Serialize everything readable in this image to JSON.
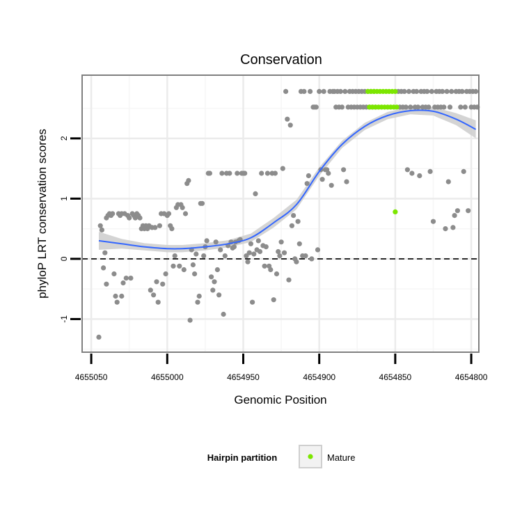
{
  "chart_data": {
    "type": "scatter",
    "title": "Conservation",
    "xlabel": "Genomic Position",
    "ylabel": "phyloP LRT conservation scores",
    "x_reversed": true,
    "xlim": [
      4655056,
      4654795
    ],
    "ylim": [
      -1.55,
      3.05
    ],
    "x_ticks": [
      4655050,
      4655000,
      4654950,
      4654900,
      4654850,
      4654800
    ],
    "x_tick_labels": [
      "4655050",
      "4655000",
      "4654950",
      "4654900",
      "4654850",
      "4654800"
    ],
    "y_ticks": [
      -1,
      0,
      1,
      2
    ],
    "y_tick_labels": [
      "-1",
      "0",
      "1",
      "2"
    ],
    "reference_line": {
      "y": 0,
      "style": "dashed"
    },
    "grid": true,
    "legend": {
      "title": "Hairpin partition",
      "position": "bottom",
      "entries": [
        {
          "label": "Mature",
          "color": "#7CE600"
        }
      ]
    },
    "colors": {
      "other": "#8C8C8C",
      "mature": "#7CE600",
      "smooth": "#3366FF",
      "band": "#CFCFCF",
      "panel_border": "#7F7F7F"
    },
    "series": [
      {
        "name": "",
        "color": "#8C8C8C",
        "points": [
          [
            4655045,
            -1.3
          ],
          [
            4655044,
            0.55
          ],
          [
            4655043,
            0.48
          ],
          [
            4655042,
            -0.15
          ],
          [
            4655041,
            0.1
          ],
          [
            4655040,
            -0.42
          ],
          [
            4655040,
            0.68
          ],
          [
            4655039,
            0.72
          ],
          [
            4655038,
            0.75
          ],
          [
            4655037,
            0.72
          ],
          [
            4655036,
            0.75
          ],
          [
            4655035,
            -0.25
          ],
          [
            4655034,
            -0.62
          ],
          [
            4655033,
            -0.72
          ],
          [
            4655032,
            0.75
          ],
          [
            4655031,
            0.72
          ],
          [
            4655030,
            -0.62
          ],
          [
            4655030,
            0.75
          ],
          [
            4655029,
            -0.4
          ],
          [
            4655028,
            0.75
          ],
          [
            4655027,
            -0.32
          ],
          [
            4655026,
            0.72
          ],
          [
            4655025,
            0.68
          ],
          [
            4655024,
            -0.32
          ],
          [
            4655023,
            0.75
          ],
          [
            4655022,
            0.72
          ],
          [
            4655021,
            0.68
          ],
          [
            4655020,
            0.75
          ],
          [
            4655019,
            0.72
          ],
          [
            4655018,
            0.68
          ],
          [
            4655017,
            0.5
          ],
          [
            4655016,
            0.55
          ],
          [
            4655015,
            0.5
          ],
          [
            4655014,
            0.55
          ],
          [
            4655013,
            0.5
          ],
          [
            4655012,
            0.55
          ],
          [
            4655011,
            -0.52
          ],
          [
            4655010,
            0.52
          ],
          [
            4655009,
            -0.6
          ],
          [
            4655008,
            0.52
          ],
          [
            4655007,
            -0.38
          ],
          [
            4655006,
            -0.72
          ],
          [
            4655005,
            0.55
          ],
          [
            4655004,
            0.75
          ],
          [
            4655003,
            -0.42
          ],
          [
            4655002,
            0.75
          ],
          [
            4655001,
            -0.25
          ],
          [
            4655000,
            0.72
          ],
          [
            4654999,
            0.75
          ],
          [
            4654998,
            0.55
          ],
          [
            4654997,
            0.5
          ],
          [
            4654996,
            -0.12
          ],
          [
            4654995,
            0.05
          ],
          [
            4654994,
            0.85
          ],
          [
            4654993,
            0.9
          ],
          [
            4654992,
            -0.12
          ],
          [
            4654991,
            0.9
          ],
          [
            4654990,
            0.85
          ],
          [
            4654989,
            -0.18
          ],
          [
            4654988,
            0.75
          ],
          [
            4654987,
            1.25
          ],
          [
            4654986,
            1.3
          ],
          [
            4654985,
            -1.02
          ],
          [
            4654984,
            0.15
          ],
          [
            4654983,
            -0.1
          ],
          [
            4654982,
            -0.25
          ],
          [
            4654981,
            0.08
          ],
          [
            4654980,
            -0.72
          ],
          [
            4654979,
            -0.62
          ],
          [
            4654978,
            0.92
          ],
          [
            4654977,
            0.92
          ],
          [
            4654976,
            0.05
          ],
          [
            4654975,
            0.2
          ],
          [
            4654974,
            0.3
          ],
          [
            4654973,
            1.42
          ],
          [
            4654972,
            1.42
          ],
          [
            4654971,
            -0.3
          ],
          [
            4654970,
            -0.52
          ],
          [
            4654969,
            -0.38
          ],
          [
            4654968,
            0.28
          ],
          [
            4654967,
            -0.18
          ],
          [
            4654966,
            -0.6
          ],
          [
            4654965,
            0.15
          ],
          [
            4654964,
            1.42
          ],
          [
            4654963,
            -0.92
          ],
          [
            4654962,
            0.05
          ],
          [
            4654961,
            1.42
          ],
          [
            4654960,
            0.22
          ],
          [
            4654959,
            1.42
          ],
          [
            4654958,
            0.28
          ],
          [
            4654957,
            0.18
          ],
          [
            4654956,
            0.2
          ],
          [
            4654955,
            0.28
          ],
          [
            4654954,
            1.42
          ],
          [
            4654953,
            0.3
          ],
          [
            4654952,
            0.32
          ],
          [
            4654951,
            1.42
          ],
          [
            4654950,
            1.42
          ],
          [
            4654949,
            1.42
          ],
          [
            4654948,
            0.05
          ],
          [
            4654947,
            -0.05
          ],
          [
            4654946,
            0.1
          ],
          [
            4654945,
            0.25
          ],
          [
            4654944,
            -0.72
          ],
          [
            4654943,
            0.08
          ],
          [
            4654942,
            1.08
          ],
          [
            4654941,
            0.15
          ],
          [
            4654940,
            0.3
          ],
          [
            4654939,
            0.12
          ],
          [
            4654938,
            1.42
          ],
          [
            4654937,
            0.22
          ],
          [
            4654936,
            -0.12
          ],
          [
            4654935,
            0.2
          ],
          [
            4654934,
            1.42
          ],
          [
            4654933,
            -0.12
          ],
          [
            4654932,
            -0.18
          ],
          [
            4654931,
            1.42
          ],
          [
            4654930,
            -0.68
          ],
          [
            4654929,
            1.42
          ],
          [
            4654928,
            -0.25
          ],
          [
            4654927,
            0.12
          ],
          [
            4654926,
            0.05
          ],
          [
            4654925,
            0.28
          ],
          [
            4654924,
            1.5
          ],
          [
            4654923,
            0.1
          ],
          [
            4654922,
            2.78
          ],
          [
            4654921,
            2.32
          ],
          [
            4654920,
            -0.35
          ],
          [
            4654919,
            2.22
          ],
          [
            4654918,
            0.55
          ],
          [
            4654917,
            0.72
          ],
          [
            4654916,
            0.0
          ],
          [
            4654915,
            -0.05
          ],
          [
            4654914,
            0.62
          ],
          [
            4654913,
            0.25
          ],
          [
            4654912,
            2.78
          ],
          [
            4654911,
            0.05
          ],
          [
            4654910,
            2.78
          ],
          [
            4654909,
            0.05
          ],
          [
            4654908,
            1.25
          ],
          [
            4654907,
            1.38
          ],
          [
            4654906,
            2.78
          ],
          [
            4654905,
            0.0
          ],
          [
            4654904,
            2.52
          ],
          [
            4654903,
            2.52
          ],
          [
            4654902,
            2.52
          ],
          [
            4654901,
            0.15
          ],
          [
            4654900,
            2.78
          ],
          [
            4654899,
            1.48
          ],
          [
            4654898,
            1.32
          ],
          [
            4654897,
            2.78
          ],
          [
            4654896,
            1.48
          ],
          [
            4654895,
            1.48
          ],
          [
            4654894,
            1.42
          ],
          [
            4654893,
            2.78
          ],
          [
            4654892,
            1.22
          ],
          [
            4654891,
            2.78
          ],
          [
            4654890,
            2.78
          ],
          [
            4654889,
            2.52
          ],
          [
            4654888,
            2.78
          ],
          [
            4654887,
            2.52
          ],
          [
            4654886,
            2.78
          ],
          [
            4654885,
            2.52
          ],
          [
            4654884,
            1.48
          ],
          [
            4654883,
            2.78
          ],
          [
            4654882,
            1.28
          ],
          [
            4654881,
            2.52
          ],
          [
            4654880,
            2.78
          ],
          [
            4654879,
            2.52
          ],
          [
            4654878,
            2.78
          ],
          [
            4654877,
            2.52
          ],
          [
            4654876,
            2.78
          ],
          [
            4654875,
            2.52
          ],
          [
            4654874,
            2.78
          ],
          [
            4654873,
            2.52
          ],
          [
            4654872,
            2.78
          ],
          [
            4654871,
            2.52
          ],
          [
            4654870,
            2.78
          ],
          [
            4654869,
            2.52
          ],
          [
            4654868,
            2.78
          ],
          [
            4654867,
            2.52
          ],
          [
            4654866,
            2.78
          ],
          [
            4654865,
            2.52
          ],
          [
            4654864,
            2.78
          ],
          [
            4654863,
            2.52
          ],
          [
            4654848,
            2.78
          ],
          [
            4654847,
            2.52
          ],
          [
            4654846,
            2.78
          ],
          [
            4654845,
            2.52
          ],
          [
            4654844,
            2.78
          ],
          [
            4654843,
            2.52
          ],
          [
            4654842,
            1.48
          ],
          [
            4654841,
            2.78
          ],
          [
            4654840,
            2.52
          ],
          [
            4654839,
            1.42
          ],
          [
            4654838,
            2.78
          ],
          [
            4654837,
            2.52
          ],
          [
            4654836,
            2.78
          ],
          [
            4654835,
            2.52
          ],
          [
            4654834,
            1.38
          ],
          [
            4654833,
            2.78
          ],
          [
            4654832,
            2.52
          ],
          [
            4654831,
            2.78
          ],
          [
            4654830,
            2.52
          ],
          [
            4654829,
            2.78
          ],
          [
            4654828,
            2.52
          ],
          [
            4654827,
            1.45
          ],
          [
            4654826,
            2.78
          ],
          [
            4654825,
            0.62
          ],
          [
            4654824,
            2.52
          ],
          [
            4654823,
            2.78
          ],
          [
            4654822,
            2.52
          ],
          [
            4654821,
            2.78
          ],
          [
            4654820,
            2.52
          ],
          [
            4654819,
            2.78
          ],
          [
            4654818,
            2.52
          ],
          [
            4654817,
            0.5
          ],
          [
            4654816,
            2.78
          ],
          [
            4654815,
            1.28
          ],
          [
            4654814,
            2.52
          ],
          [
            4654813,
            2.78
          ],
          [
            4654812,
            0.52
          ],
          [
            4654811,
            0.72
          ],
          [
            4654810,
            2.78
          ],
          [
            4654809,
            0.8
          ],
          [
            4654808,
            2.78
          ],
          [
            4654807,
            2.52
          ],
          [
            4654806,
            2.78
          ],
          [
            4654805,
            1.45
          ],
          [
            4654804,
            2.52
          ],
          [
            4654803,
            2.78
          ],
          [
            4654802,
            0.8
          ],
          [
            4654801,
            2.78
          ],
          [
            4654800,
            2.52
          ],
          [
            4654799,
            2.78
          ],
          [
            4654798,
            2.52
          ],
          [
            4654797,
            2.78
          ],
          [
            4654796,
            2.52
          ]
        ]
      },
      {
        "name": "Mature",
        "color": "#7CE600",
        "points": [
          [
            4654868,
            2.78
          ],
          [
            4654867,
            2.52
          ],
          [
            4654866,
            2.78
          ],
          [
            4654865,
            2.52
          ],
          [
            4654864,
            2.78
          ],
          [
            4654863,
            2.52
          ],
          [
            4654862,
            2.78
          ],
          [
            4654861,
            2.52
          ],
          [
            4654860,
            2.78
          ],
          [
            4654859,
            2.52
          ],
          [
            4654858,
            2.78
          ],
          [
            4654857,
            2.52
          ],
          [
            4654856,
            2.78
          ],
          [
            4654855,
            2.52
          ],
          [
            4654854,
            2.78
          ],
          [
            4654853,
            2.52
          ],
          [
            4654852,
            2.78
          ],
          [
            4654851,
            2.52
          ],
          [
            4654850,
            2.78
          ],
          [
            4654849,
            2.52
          ],
          [
            4654850,
            0.78
          ]
        ]
      }
    ],
    "smooth": {
      "x": [
        4655045,
        4655030,
        4655015,
        4655000,
        4654990,
        4654975,
        4654960,
        4654945,
        4654930,
        4654915,
        4654900,
        4654885,
        4654870,
        4654855,
        4654840,
        4654825,
        4654810,
        4654797
      ],
      "y": [
        0.3,
        0.25,
        0.2,
        0.17,
        0.17,
        0.2,
        0.25,
        0.35,
        0.6,
        0.9,
        1.45,
        1.9,
        2.2,
        2.38,
        2.46,
        2.45,
        2.32,
        2.15
      ],
      "se": [
        0.15,
        0.08,
        0.06,
        0.06,
        0.06,
        0.06,
        0.06,
        0.07,
        0.08,
        0.08,
        0.07,
        0.06,
        0.06,
        0.06,
        0.06,
        0.07,
        0.1,
        0.15
      ]
    }
  }
}
